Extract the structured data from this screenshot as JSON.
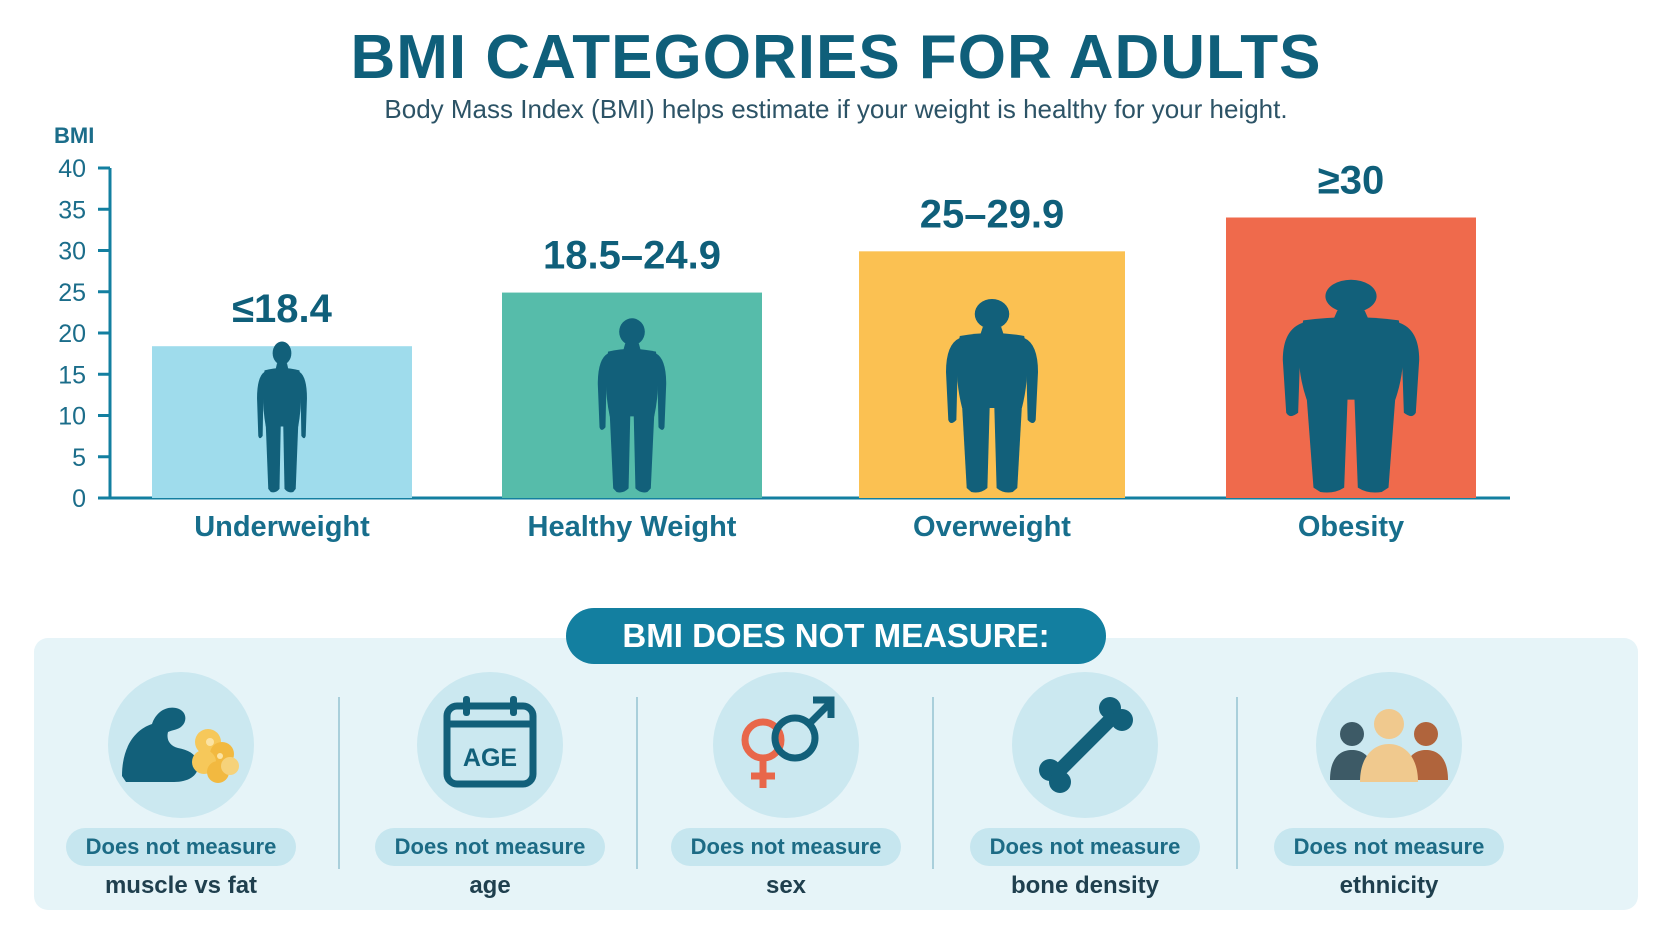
{
  "header": {
    "title": "BMI CATEGORIES FOR ADULTS",
    "subtitle": "Body Mass Index (BMI) helps estimate if your weight is healthy for your height."
  },
  "chart_data": {
    "type": "bar",
    "ylabel": "BMI",
    "ylim": [
      0,
      40
    ],
    "yticks": [
      0,
      5,
      10,
      15,
      20,
      25,
      30,
      35,
      40
    ],
    "grid": false,
    "categories": [
      "Underweight",
      "Healthy Weight",
      "Overweight",
      "Obesity"
    ],
    "values": [
      18.4,
      24.9,
      29.9,
      34
    ],
    "value_labels": [
      "≤18.4",
      "18.5–24.9",
      "25–29.9",
      "≥30"
    ],
    "colors": [
      "#9fdcec",
      "#56bcaa",
      "#fbc152",
      "#ef6a4c"
    ]
  },
  "not_measured": {
    "heading": "BMI DOES NOT MEASURE:",
    "items": [
      {
        "icon": "muscle-fat-icon",
        "tag": "Does not measure",
        "label": "muscle vs fat"
      },
      {
        "icon": "calendar-age-icon",
        "icon_text": "AGE",
        "tag": "Does not measure",
        "label": "age"
      },
      {
        "icon": "gender-symbols-icon",
        "tag": "Does not measure",
        "label": "sex"
      },
      {
        "icon": "bone-icon",
        "tag": "Does not measure",
        "label": "bone density"
      },
      {
        "icon": "people-group-icon",
        "tag": "Does not measure",
        "label": "ethnicity"
      }
    ]
  },
  "colors": {
    "primary": "#0f5f7a",
    "accent": "#137fa0",
    "silhouette": "#12607a"
  }
}
